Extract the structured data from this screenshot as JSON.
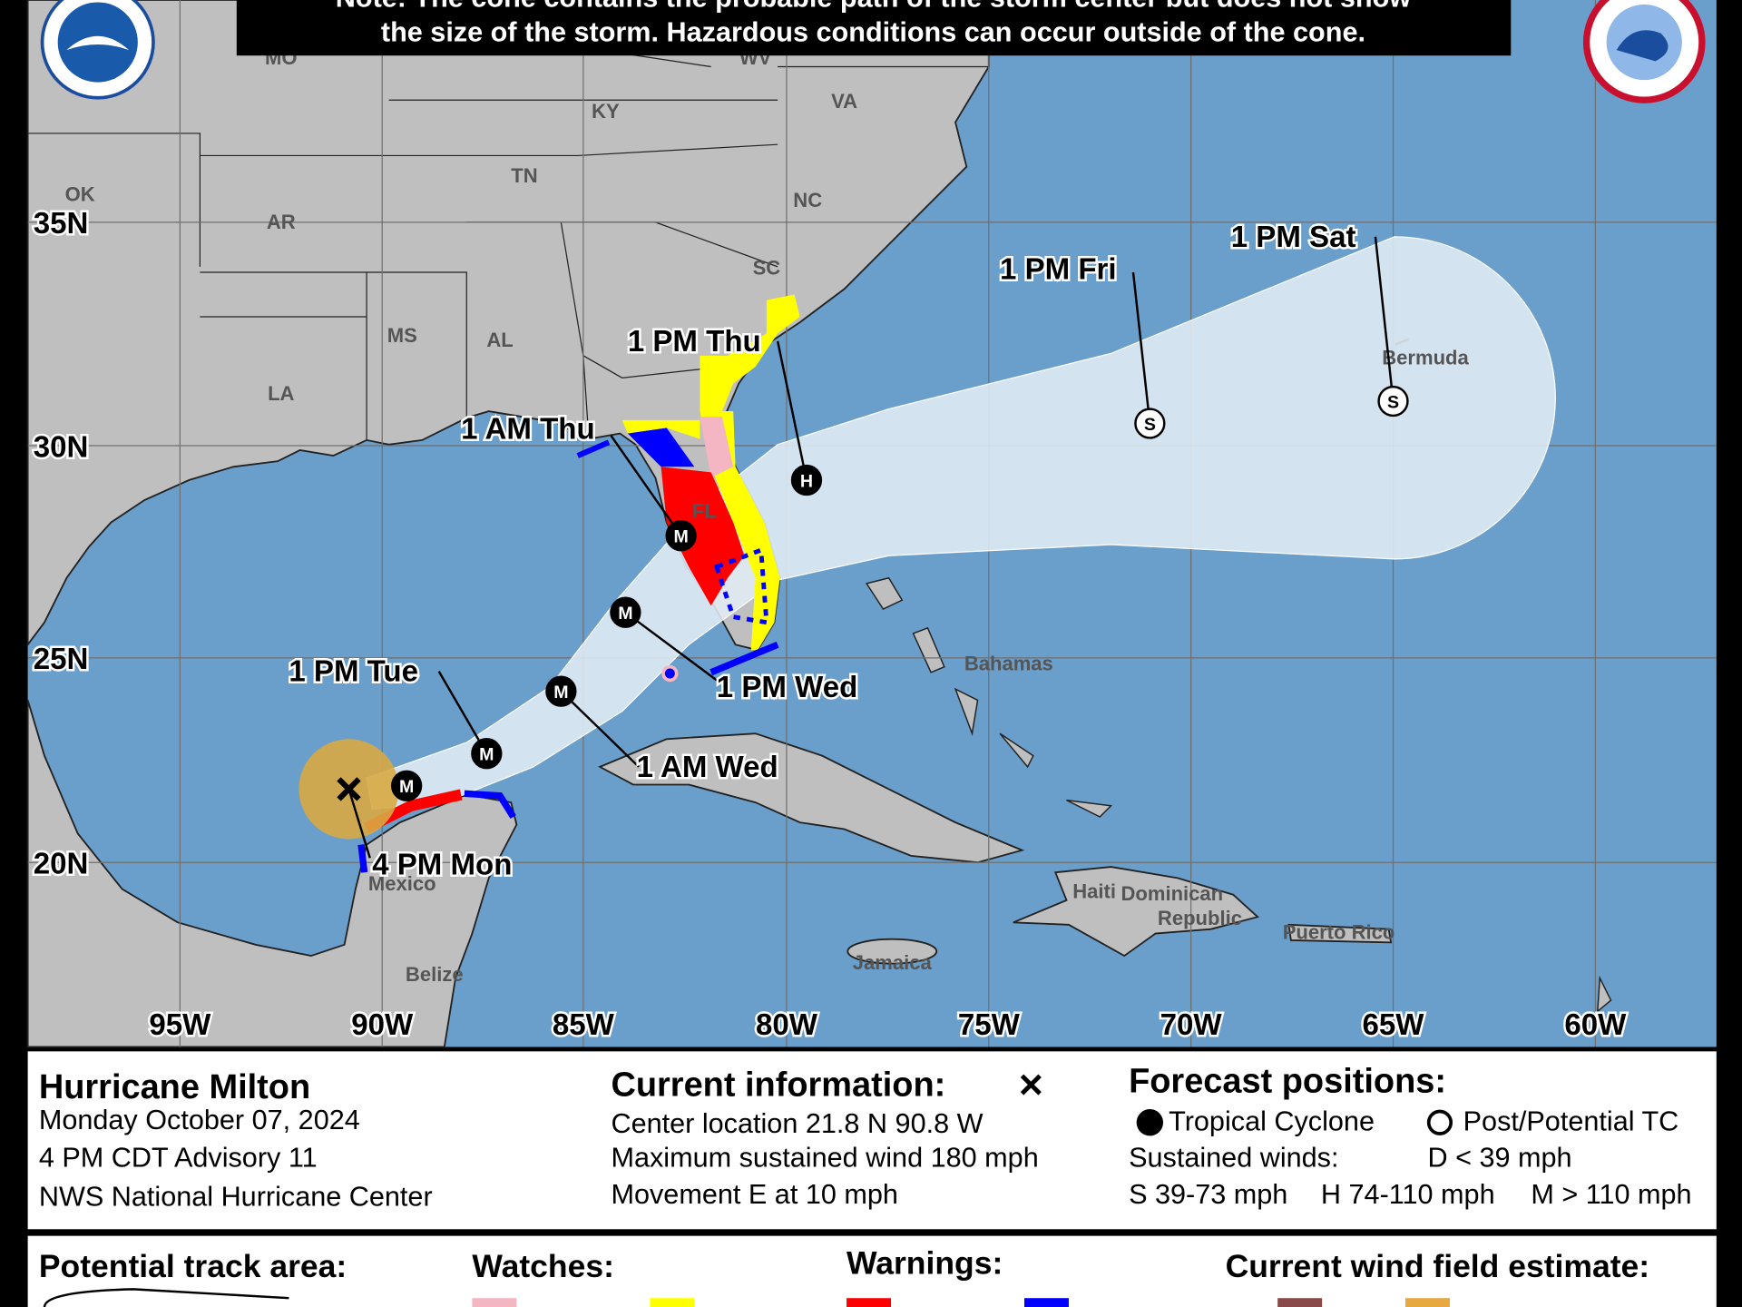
{
  "header": {
    "note": [
      "Note: The cone contains the probable path of the storm center but does not show",
      "the size of the storm. Hazardous conditions can occur outside of the cone."
    ]
  },
  "map": {
    "places": [
      "MO",
      "WV",
      "KY",
      "VA",
      "OK",
      "TN",
      "NC",
      "AR",
      "SC",
      "MS",
      "AL",
      "LA",
      "FL",
      "Bermuda",
      "Bahamas",
      "Mexico",
      "Belize",
      "Haiti",
      "Dominican",
      "Republic",
      "Jamaica",
      "Puerto Rico"
    ],
    "latitudes": [
      "35N",
      "30N",
      "25N",
      "20N"
    ],
    "longitudes": [
      "95W",
      "90W",
      "85W",
      "80W",
      "75W",
      "70W",
      "65W",
      "60W"
    ],
    "current_position": {
      "time": "4 PM Mon"
    },
    "forecast_points": [
      {
        "intensity": "M"
      },
      {
        "time": "1 PM Tue",
        "intensity": "M"
      },
      {
        "time": "1 AM Wed",
        "intensity": "M"
      },
      {
        "time": "1 PM Wed",
        "intensity": "M"
      },
      {
        "time": "1 AM Thu",
        "intensity": "M"
      },
      {
        "time": "1 PM Thu",
        "intensity": "H"
      },
      {
        "time": "1 PM Fri",
        "intensity": "S"
      },
      {
        "time": "1 PM Sat",
        "intensity": "S"
      }
    ]
  },
  "storm": {
    "name": "Hurricane Milton",
    "date": "Monday October 07, 2024",
    "advisory": "4 PM CDT Advisory 11",
    "center": "NWS National Hurricane Center"
  },
  "current": {
    "title": "Current information:",
    "lines": [
      "Center location 21.8 N 90.8 W",
      "Maximum sustained wind 180 mph",
      "Movement E at 10 mph"
    ]
  },
  "forecast_key": {
    "title": "Forecast positions:",
    "tropical": "Tropical Cyclone",
    "post": "Post/Potential TC",
    "winds_title": "Sustained winds:",
    "scale": [
      "D < 39 mph",
      "S 39-73 mph",
      "H 74-110 mph",
      "M > 110 mph"
    ]
  },
  "legend": {
    "track_area": "Potential track area:",
    "watches": "Watches:",
    "warnings": "Warnings:",
    "wind_field": "Current wind field estimate:"
  }
}
